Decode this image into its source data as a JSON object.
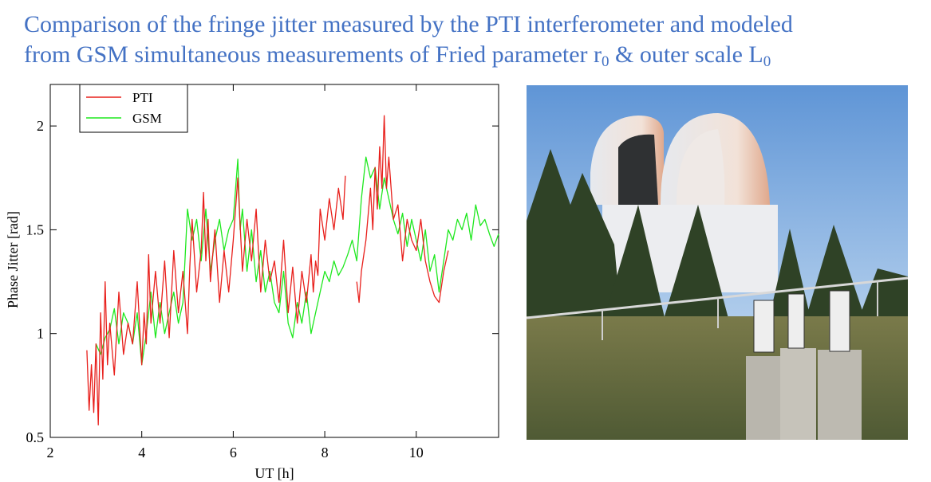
{
  "title": {
    "line1": "Comparison of the fringe jitter measured by the PTI interferometer and modeled",
    "line2_a": "from GSM simultaneous measurements of Fried parameter r",
    "line2_sub1": "0",
    "line2_b": " & outer scale L",
    "line2_sub2": "0"
  },
  "colors": {
    "title": "#4472c4",
    "pti": "#e8201c",
    "gsm": "#1ee81e"
  },
  "chart_data": {
    "type": "line",
    "xlabel": "UT [h]",
    "ylabel": "Phase Jitter [rad]",
    "xlim": [
      2,
      11.8
    ],
    "ylim": [
      0.5,
      2.2
    ],
    "xticks": [
      2,
      4,
      6,
      8,
      10
    ],
    "yticks": [
      0.5,
      1,
      1.5,
      2
    ],
    "xtick_labels": [
      "2",
      "4",
      "6",
      "8",
      "10"
    ],
    "ytick_labels": [
      "0.5",
      "1",
      "1.5",
      "2"
    ],
    "grid": false,
    "legend": "top-left",
    "series": [
      {
        "name": "PTI",
        "color": "#e8201c",
        "segments": [
          {
            "x": [
              2.8,
              2.85,
              2.9,
              2.95,
              3.0,
              3.05,
              3.1,
              3.15,
              3.2,
              3.25,
              3.3,
              3.4,
              3.5,
              3.6,
              3.7,
              3.8,
              3.9,
              4.0,
              4.05,
              4.1,
              4.15,
              4.2,
              4.3,
              4.4,
              4.5,
              4.6,
              4.7,
              4.8,
              4.9,
              5.0,
              5.05,
              5.1,
              5.2,
              5.3,
              5.35,
              5.4,
              5.45,
              5.5,
              5.6,
              5.7,
              5.8,
              5.9,
              6.0,
              6.1,
              6.2,
              6.3,
              6.4,
              6.5,
              6.6,
              6.7,
              6.8,
              6.9,
              7.0,
              7.1,
              7.2,
              7.3,
              7.4,
              7.5,
              7.6,
              7.7,
              7.75,
              7.8,
              7.85,
              7.9,
              8.0,
              8.1,
              8.2,
              8.3,
              8.4,
              8.45
            ],
            "y": [
              0.92,
              0.63,
              0.85,
              0.62,
              0.95,
              0.56,
              1.1,
              0.78,
              1.25,
              0.85,
              1.05,
              0.8,
              1.2,
              0.9,
              1.05,
              0.95,
              1.25,
              0.85,
              1.1,
              0.95,
              1.38,
              1.05,
              1.3,
              1.05,
              1.35,
              0.98,
              1.4,
              1.1,
              1.3,
              1.0,
              1.32,
              1.55,
              1.2,
              1.4,
              1.68,
              1.35,
              1.55,
              1.25,
              1.5,
              1.15,
              1.4,
              1.2,
              1.45,
              1.75,
              1.3,
              1.55,
              1.35,
              1.6,
              1.2,
              1.45,
              1.25,
              1.35,
              1.15,
              1.45,
              1.1,
              1.32,
              1.05,
              1.3,
              1.15,
              1.38,
              1.2,
              1.35,
              1.28,
              1.6,
              1.45,
              1.65,
              1.5,
              1.7,
              1.55,
              1.76
            ]
          },
          {
            "x": [
              8.7,
              8.75,
              8.8,
              8.9,
              9.0,
              9.05,
              9.1,
              9.15,
              9.2,
              9.25,
              9.3,
              9.35,
              9.4,
              9.5,
              9.6,
              9.7,
              9.8,
              9.9,
              10.0,
              10.1,
              10.2,
              10.3,
              10.4,
              10.5,
              10.6,
              10.7
            ],
            "y": [
              1.25,
              1.15,
              1.3,
              1.45,
              1.7,
              1.5,
              1.8,
              1.6,
              1.9,
              1.7,
              2.05,
              1.7,
              1.85,
              1.55,
              1.62,
              1.35,
              1.55,
              1.45,
              1.4,
              1.55,
              1.35,
              1.25,
              1.18,
              1.15,
              1.3,
              1.4
            ]
          }
        ]
      },
      {
        "name": "GSM",
        "color": "#1ee81e",
        "segments": [
          {
            "x": [
              3.0,
              3.1,
              3.2,
              3.3,
              3.4,
              3.5,
              3.6,
              3.7,
              3.8,
              3.9,
              4.0,
              4.1,
              4.2,
              4.3,
              4.4,
              4.5,
              4.6,
              4.7,
              4.8,
              4.9,
              5.0,
              5.1,
              5.2,
              5.3,
              5.4,
              5.5,
              5.6,
              5.7,
              5.8,
              5.9,
              6.0,
              6.1,
              6.15,
              6.2,
              6.3,
              6.4,
              6.5,
              6.6,
              6.7,
              6.8,
              6.9,
              7.0,
              7.1,
              7.2,
              7.3,
              7.4,
              7.5,
              7.6,
              7.7,
              7.8,
              7.9,
              8.0,
              8.1,
              8.2,
              8.3,
              8.4,
              8.5,
              8.6,
              8.7,
              8.8,
              8.9,
              9.0,
              9.1,
              9.2,
              9.3,
              9.4,
              9.5,
              9.6,
              9.7,
              9.8,
              9.9,
              10.0,
              10.1,
              10.2,
              10.3,
              10.4,
              10.5,
              10.6,
              10.7,
              10.8,
              10.9,
              11.0,
              11.1,
              11.2,
              11.3,
              11.4,
              11.5,
              11.6,
              11.7,
              11.8
            ],
            "y": [
              0.95,
              0.9,
              0.98,
              1.02,
              1.12,
              0.95,
              1.1,
              1.05,
              0.95,
              1.1,
              0.85,
              1.0,
              1.2,
              0.98,
              1.15,
              1.0,
              1.1,
              1.2,
              1.05,
              1.15,
              1.6,
              1.45,
              1.55,
              1.35,
              1.6,
              1.3,
              1.45,
              1.55,
              1.4,
              1.5,
              1.55,
              1.84,
              1.5,
              1.6,
              1.3,
              1.5,
              1.25,
              1.4,
              1.2,
              1.3,
              1.15,
              1.1,
              1.3,
              1.05,
              0.98,
              1.15,
              1.05,
              1.2,
              1.0,
              1.1,
              1.2,
              1.3,
              1.25,
              1.35,
              1.28,
              1.32,
              1.38,
              1.45,
              1.35,
              1.65,
              1.85,
              1.75,
              1.8,
              1.6,
              1.75,
              1.65,
              1.55,
              1.48,
              1.58,
              1.42,
              1.55,
              1.45,
              1.35,
              1.5,
              1.3,
              1.38,
              1.2,
              1.35,
              1.5,
              1.45,
              1.55,
              1.5,
              1.58,
              1.45,
              1.62,
              1.52,
              1.55,
              1.48,
              1.42,
              1.48
            ]
          }
        ]
      }
    ]
  },
  "photo": {
    "subject": "observatory dome with GSM telescopes on pillars"
  }
}
